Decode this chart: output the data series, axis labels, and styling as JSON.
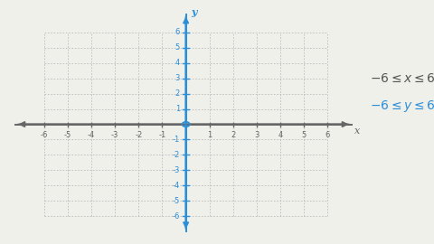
{
  "x_range": [
    -6,
    6
  ],
  "y_range": [
    -6,
    6
  ],
  "x_ticks": [
    -6,
    -5,
    -4,
    -3,
    -2,
    -1,
    1,
    2,
    3,
    4,
    5,
    6
  ],
  "y_ticks": [
    -6,
    -5,
    -4,
    -3,
    -2,
    -1,
    1,
    2,
    3,
    4,
    5,
    6
  ],
  "background_color": "#f0f0eb",
  "grid_color": "#bbbbbb",
  "x_axis_color": "#666666",
  "y_axis_color": "#2b8fd8",
  "x_tick_color": "#666666",
  "y_tick_color": "#2b8fd8",
  "x_label": "x",
  "y_label": "y",
  "text_x_inequality": "$-6 \\leq x \\leq 6$",
  "text_y_inequality": "$-6 \\leq y \\leq 6$",
  "text_x_color": "#555555",
  "text_y_color": "#2b8fd8",
  "origin_marker_color": "#2b8fd8",
  "figsize": [
    4.8,
    2.7
  ],
  "dpi": 100
}
